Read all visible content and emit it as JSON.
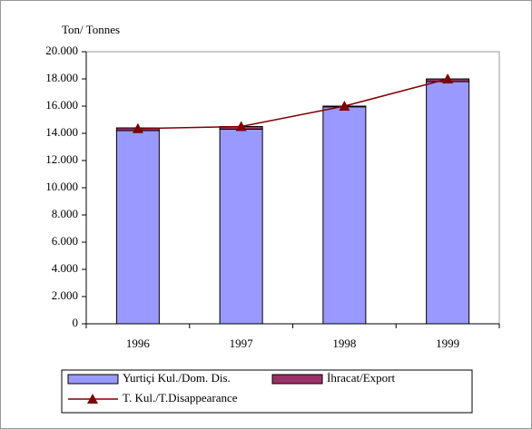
{
  "chart_data": {
    "type": "bar",
    "stacked": true,
    "y_label": "Ton/ Tonnes",
    "categories": [
      "1996",
      "1997",
      "1998",
      "1999"
    ],
    "series": [
      {
        "name": "Yurtiçi Kul./Dom. Dis.",
        "color": "#9999ff",
        "values": [
          14200,
          14300,
          15950,
          17800
        ]
      },
      {
        "name": "İhracat/Export",
        "color": "#993366",
        "values": [
          200,
          200,
          50,
          200
        ]
      },
      {
        "name": "T. Kul./T.Disappearance",
        "color": "#800000",
        "type": "line",
        "values": [
          14350,
          14500,
          16000,
          18000
        ]
      }
    ],
    "ylim": [
      0,
      20000
    ],
    "yticks": [
      0,
      {
        "value": 2000,
        "label": "2.000"
      },
      {
        "value": 4000,
        "label": "4.000"
      },
      {
        "value": 6000,
        "label": "6.000"
      },
      {
        "value": 8000,
        "label": "8.000"
      },
      {
        "value": 10000,
        "label": "10.000"
      },
      {
        "value": 12000,
        "label": "12.000"
      },
      {
        "value": 14000,
        "label": "14.000"
      },
      {
        "value": 16000,
        "label": "16.000"
      },
      {
        "value": 18000,
        "label": "18.000"
      },
      {
        "value": 20000,
        "label": "20.000"
      }
    ],
    "grid": false,
    "legend": "bottom"
  }
}
